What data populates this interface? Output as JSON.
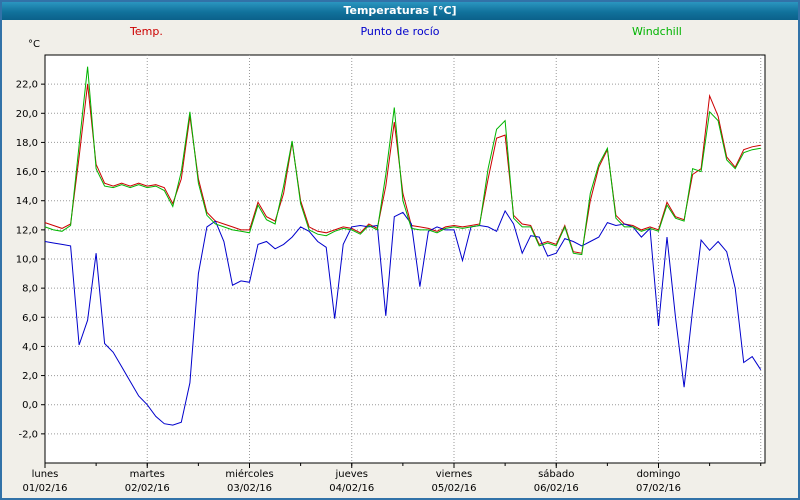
{
  "window": {
    "title": "Temperaturas [°C]"
  },
  "legend": [
    {
      "label": "Temp.",
      "color": "#cc0000"
    },
    {
      "label": "Punto de rocío",
      "color": "#0000cc"
    },
    {
      "label": "Windchill",
      "color": "#00b400"
    }
  ],
  "chart_data": {
    "type": "line",
    "title": "Temperaturas [°C]",
    "ylabel": "°C",
    "ylim": [
      -4,
      24
    ],
    "ytick_range": [
      -2,
      22
    ],
    "ytick_step": 2,
    "grid": "dotted",
    "legend_position": "top",
    "x_unit": "hours",
    "x_domain": [
      0,
      169
    ],
    "x_step_hours": 2,
    "days": [
      {
        "name": "lunes",
        "date": "01/02/16"
      },
      {
        "name": "martes",
        "date": "02/02/16"
      },
      {
        "name": "miércoles",
        "date": "03/02/16"
      },
      {
        "name": "jueves",
        "date": "04/02/16"
      },
      {
        "name": "viernes",
        "date": "05/02/16"
      },
      {
        "name": "sábado",
        "date": "06/02/16"
      },
      {
        "name": "domingo",
        "date": "07/02/16"
      }
    ],
    "series": [
      {
        "name": "Temp.",
        "color": "#cc0000",
        "values": [
          12.5,
          12.3,
          12.1,
          12.4,
          17.0,
          22.0,
          16.5,
          15.2,
          15.0,
          15.2,
          15.0,
          15.2,
          15.0,
          15.1,
          14.9,
          13.8,
          15.5,
          19.8,
          15.5,
          13.2,
          12.6,
          12.4,
          12.2,
          12.0,
          12.0,
          13.9,
          12.9,
          12.6,
          14.5,
          18.0,
          14.0,
          12.2,
          11.9,
          11.8,
          12.0,
          12.2,
          12.1,
          11.8,
          12.4,
          12.1,
          15.0,
          19.4,
          14.5,
          12.3,
          12.2,
          12.1,
          11.9,
          12.2,
          12.3,
          12.2,
          12.3,
          12.4,
          15.5,
          18.3,
          18.5,
          13.0,
          12.4,
          12.3,
          11.0,
          11.2,
          11.0,
          12.3,
          10.5,
          10.4,
          14.0,
          16.3,
          17.5,
          13.0,
          12.4,
          12.3,
          12.0,
          12.2,
          12.0,
          13.9,
          12.9,
          12.7,
          15.8,
          16.2,
          21.2,
          19.8,
          17.0,
          16.3,
          17.5,
          17.7,
          17.8
        ]
      },
      {
        "name": "Punto de rocío",
        "color": "#0000cc",
        "values": [
          11.2,
          11.1,
          11.0,
          10.9,
          4.1,
          5.8,
          10.4,
          4.2,
          3.6,
          2.6,
          1.6,
          0.6,
          0.0,
          -0.8,
          -1.3,
          -1.4,
          -1.2,
          1.5,
          9.0,
          12.2,
          12.6,
          11.2,
          8.2,
          8.5,
          8.4,
          11.0,
          11.2,
          10.7,
          11.0,
          11.5,
          12.2,
          11.9,
          11.2,
          10.8,
          5.9,
          11.0,
          12.2,
          12.3,
          12.2,
          12.3,
          6.1,
          12.9,
          13.2,
          12.4,
          8.1,
          11.9,
          12.2,
          12.0,
          12.0,
          9.9,
          12.2,
          12.3,
          12.2,
          11.9,
          13.3,
          12.4,
          10.4,
          11.6,
          11.5,
          10.2,
          10.4,
          11.4,
          11.2,
          10.9,
          11.2,
          11.5,
          12.5,
          12.3,
          12.4,
          12.2,
          11.5,
          12.1,
          5.4,
          11.5,
          6.0,
          1.2,
          6.5,
          11.3,
          10.6,
          11.2,
          10.5,
          8.0,
          2.9,
          3.3,
          2.4
        ]
      },
      {
        "name": "Windchill",
        "color": "#00b400",
        "values": [
          12.2,
          12.0,
          11.9,
          12.3,
          17.8,
          23.2,
          16.2,
          15.0,
          14.9,
          15.1,
          14.9,
          15.1,
          14.9,
          15.0,
          14.7,
          13.6,
          16.0,
          20.1,
          15.2,
          13.0,
          12.4,
          12.2,
          12.0,
          11.9,
          11.8,
          13.7,
          12.7,
          12.4,
          15.0,
          18.1,
          13.8,
          12.0,
          11.7,
          11.6,
          11.9,
          12.1,
          12.0,
          11.7,
          12.3,
          12.0,
          15.8,
          20.4,
          14.0,
          12.1,
          12.0,
          12.0,
          11.8,
          12.1,
          12.2,
          12.1,
          12.2,
          12.3,
          16.2,
          18.9,
          19.5,
          12.8,
          12.2,
          12.2,
          10.9,
          11.1,
          10.9,
          12.2,
          10.4,
          10.3,
          14.5,
          16.5,
          17.6,
          12.8,
          12.2,
          12.2,
          11.9,
          12.1,
          11.9,
          13.7,
          12.8,
          12.6,
          16.2,
          16.0,
          20.1,
          19.5,
          16.8,
          16.2,
          17.3,
          17.5,
          17.6
        ]
      }
    ]
  }
}
